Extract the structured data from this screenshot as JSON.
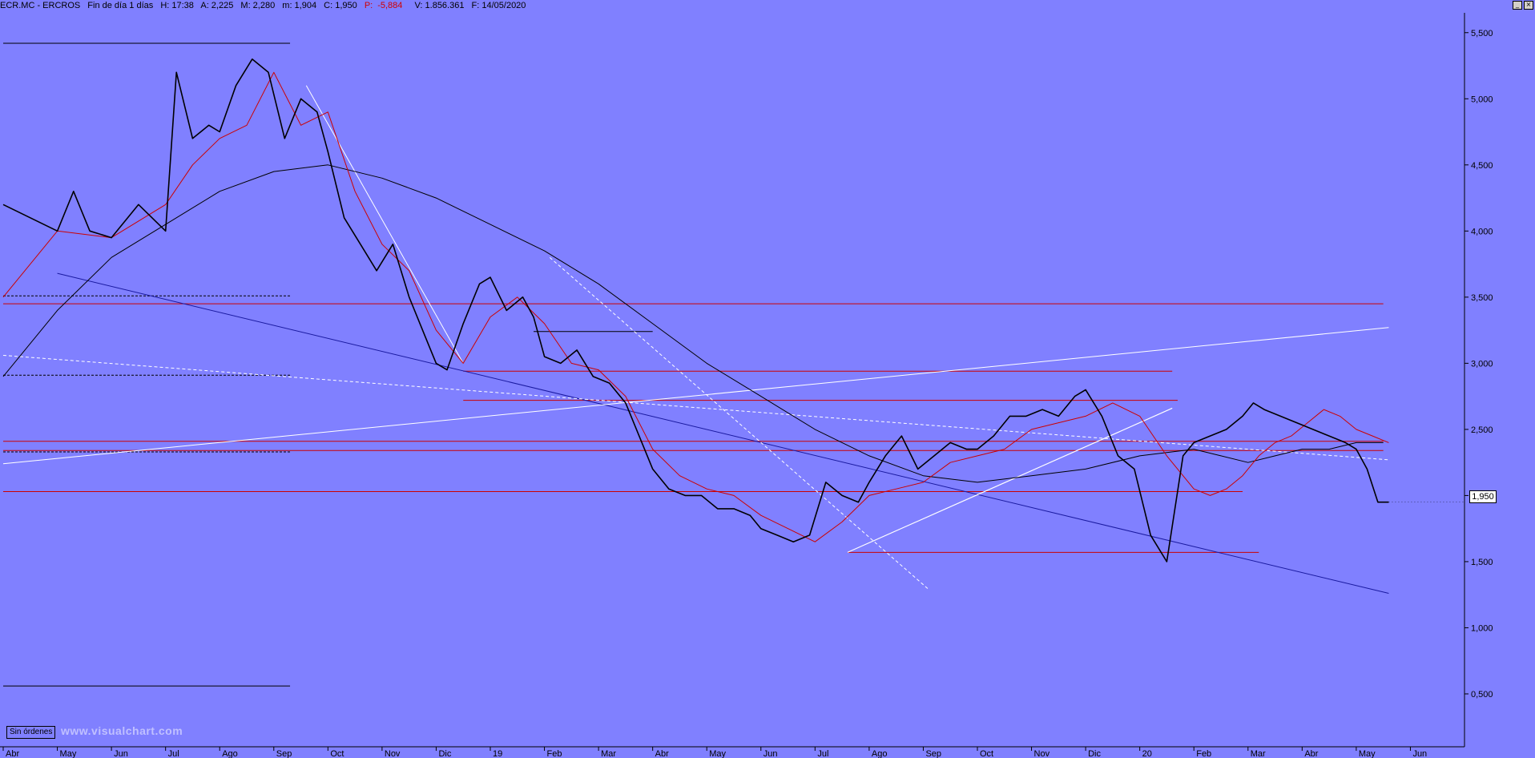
{
  "header": {
    "symbol": "ECR.MC - ERCROS",
    "period": "Fin de día 1 días",
    "hour": "H: 17:38",
    "open": "A: 2,225",
    "high": "M: 2,280",
    "low": "m: 1,904",
    "close": "C: 1,950",
    "pct_label": "P:",
    "pct_value": "-5,884",
    "volume": "V: 1.856.361",
    "date": "F: 14/05/2020"
  },
  "last_price": "1,950",
  "orders_button": "Sin órdenes",
  "watermark": "www.visualchart.com",
  "colors": {
    "background": "#8080ff",
    "price": "#000000",
    "ma_short": "#cc0000",
    "ma_long": "#000000",
    "support_lines": "#cc0000",
    "trend_blue": "#1a1aa0",
    "trend_white": "#ffffff"
  },
  "chart_data": {
    "type": "line",
    "title": "ECR.MC - ERCROS",
    "x_labels": [
      "Abr",
      "May",
      "Jun",
      "Jul",
      "Ago",
      "Sep",
      "Oct",
      "Nov",
      "Dic",
      "19",
      "Feb",
      "Mar",
      "Abr",
      "May",
      "Jun",
      "Jul",
      "Ago",
      "Sep",
      "Oct",
      "Nov",
      "Dic",
      "20",
      "Feb",
      "Mar",
      "Abr",
      "May",
      "Jun"
    ],
    "y_ticks": [
      "5,500",
      "5,000",
      "4,500",
      "4,000",
      "3,500",
      "3,000",
      "2,500",
      "2,000",
      "1,500",
      "1,000",
      "0,500"
    ],
    "ylim": [
      0.1,
      5.65
    ],
    "grid": false,
    "series": [
      {
        "name": "price",
        "x": [
          0,
          0.5,
          1,
          1.3,
          1.6,
          2,
          2.5,
          3,
          3.2,
          3.5,
          3.8,
          4,
          4.3,
          4.6,
          4.9,
          5.2,
          5.5,
          5.8,
          6,
          6.3,
          6.6,
          6.9,
          7.2,
          7.5,
          7.8,
          8,
          8.2,
          8.5,
          8.8,
          9,
          9.3,
          9.6,
          9.8,
          10,
          10.3,
          10.6,
          10.9,
          11.2,
          11.5,
          11.8,
          12,
          12.3,
          12.6,
          12.9,
          13.2,
          13.5,
          13.8,
          14,
          14.3,
          14.6,
          14.9,
          15.2,
          15.5,
          15.8,
          16,
          16.3,
          16.6,
          16.9,
          17.2,
          17.5,
          17.8,
          18,
          18.3,
          18.6,
          18.9,
          19.2,
          19.5,
          19.8,
          20,
          20.3,
          20.6,
          20.9,
          21.2,
          21.5,
          21.8,
          22,
          22.3,
          22.6,
          22.9,
          23.1,
          23.3,
          23.6,
          23.9,
          24.2,
          24.5,
          24.8,
          25,
          25.2,
          25.4,
          25.6
        ],
        "values": [
          4.2,
          4.1,
          4.0,
          4.3,
          4.0,
          3.95,
          4.2,
          4.0,
          5.2,
          4.7,
          4.8,
          4.75,
          5.1,
          5.3,
          5.2,
          4.7,
          5.0,
          4.9,
          4.6,
          4.1,
          3.9,
          3.7,
          3.9,
          3.5,
          3.2,
          3.0,
          2.95,
          3.3,
          3.6,
          3.65,
          3.4,
          3.5,
          3.35,
          3.05,
          3.0,
          3.1,
          2.9,
          2.85,
          2.7,
          2.4,
          2.2,
          2.05,
          2.0,
          2.0,
          1.9,
          1.9,
          1.85,
          1.75,
          1.7,
          1.65,
          1.7,
          2.1,
          2.0,
          1.95,
          2.1,
          2.3,
          2.45,
          2.2,
          2.3,
          2.4,
          2.35,
          2.35,
          2.45,
          2.6,
          2.6,
          2.65,
          2.6,
          2.75,
          2.8,
          2.6,
          2.3,
          2.2,
          1.7,
          1.5,
          2.3,
          2.4,
          2.45,
          2.5,
          2.6,
          2.7,
          2.65,
          2.6,
          2.55,
          2.5,
          2.45,
          2.4,
          2.35,
          2.2,
          1.95,
          1.95
        ]
      },
      {
        "name": "ma_short",
        "x": [
          0,
          1,
          2,
          3,
          3.5,
          4,
          4.5,
          5,
          5.5,
          6,
          6.5,
          7,
          7.5,
          8,
          8.5,
          9,
          9.5,
          10,
          10.5,
          11,
          11.5,
          12,
          12.5,
          13,
          13.5,
          14,
          14.5,
          15,
          15.5,
          16,
          16.5,
          17,
          17.5,
          18,
          18.5,
          19,
          19.5,
          20,
          20.5,
          21,
          21.5,
          22,
          22.3,
          22.6,
          22.9,
          23.2,
          23.5,
          23.8,
          24.1,
          24.4,
          24.7,
          25,
          25.3,
          25.6
        ],
        "values": [
          3.5,
          4.0,
          3.95,
          4.2,
          4.5,
          4.7,
          4.8,
          5.2,
          4.8,
          4.9,
          4.3,
          3.9,
          3.7,
          3.25,
          3.0,
          3.35,
          3.5,
          3.3,
          3.0,
          2.95,
          2.75,
          2.35,
          2.15,
          2.05,
          2.0,
          1.85,
          1.75,
          1.65,
          1.8,
          2.0,
          2.05,
          2.1,
          2.25,
          2.3,
          2.35,
          2.5,
          2.55,
          2.6,
          2.7,
          2.6,
          2.3,
          2.05,
          2.0,
          2.05,
          2.15,
          2.3,
          2.4,
          2.45,
          2.55,
          2.65,
          2.6,
          2.5,
          2.45,
          2.4
        ]
      },
      {
        "name": "ma_long",
        "x": [
          0,
          1,
          2,
          3,
          4,
          5,
          6,
          7,
          8,
          9,
          10,
          11,
          12,
          13,
          14,
          15,
          16,
          17,
          18,
          19,
          20,
          21,
          22,
          22.5,
          23,
          23.5,
          24,
          24.5,
          25,
          25.5
        ],
        "values": [
          2.9,
          3.4,
          3.8,
          4.05,
          4.3,
          4.45,
          4.5,
          4.4,
          4.25,
          4.05,
          3.85,
          3.6,
          3.3,
          3.0,
          2.75,
          2.5,
          2.3,
          2.15,
          2.1,
          2.15,
          2.2,
          2.3,
          2.35,
          2.3,
          2.25,
          2.3,
          2.35,
          2.35,
          2.4,
          2.4
        ]
      }
    ]
  }
}
